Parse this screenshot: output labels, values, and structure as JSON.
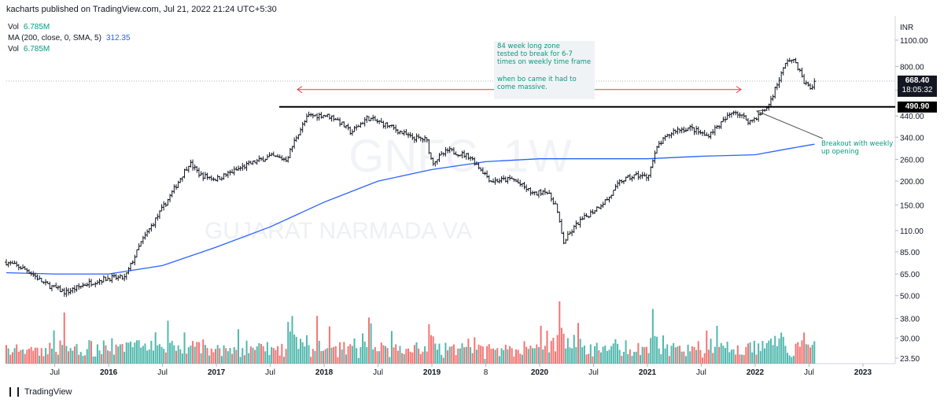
{
  "header": {
    "published": "kacharts published on TradingView.com, Jul 21, 2022 21:24 UTC+5:30"
  },
  "legend": {
    "vol1_label": "Vol",
    "vol1_value": "6.785M",
    "ma_label": "MA (200, close, 0, SMA, 5)",
    "ma_value": "312.35",
    "vol2_label": "Vol",
    "vol2_value": "6.785M"
  },
  "watermark": {
    "symbol": "GNFC, 1W",
    "name": "GUJARAT NARMADA VA"
  },
  "annotations": {
    "zone_note": [
      "84 week long zone",
      "tested to break for 6-7",
      "times on weekly time frame"
    ],
    "bo_note": [
      "when bo came it had to",
      "come massive."
    ],
    "breakout_note": [
      "Breakout with weekly",
      "up opening"
    ]
  },
  "price_axis": {
    "currency": "INR",
    "last_price": "668.40",
    "countdown": "18:05:32",
    "level_label": "490.90"
  },
  "footer": {
    "brand": "TradingView"
  },
  "colors": {
    "up": "#089981",
    "down": "#f23645",
    "ma": "#2962ff",
    "candle": "#131722",
    "vol_up": "#26a69a",
    "vol_down": "#ef5350"
  },
  "chart_data": {
    "type": "ohlc",
    "symbol": "GNFC, 1W",
    "y_scale": "log",
    "y_ticks": [
      1100,
      800,
      600,
      440,
      340,
      260,
      200,
      150,
      110,
      85,
      65,
      50,
      38,
      30,
      23.5
    ],
    "y_tick_labels": [
      "1100.00",
      "800.00",
      "",
      "440.00",
      "340.00",
      "260.00",
      "200.00",
      "150.00",
      "110.00",
      "85.00",
      "65.00",
      "50.00",
      "38.00",
      "30.00",
      "23.50"
    ],
    "x_ticks": [
      "Jul",
      "2016",
      "Jul",
      "2017",
      "Jul",
      "2018",
      "Jul",
      "2019",
      "8",
      "2020",
      "Jul",
      "2021",
      "Jul",
      "2022",
      "Jul",
      "2023"
    ],
    "x_tick_dates": [
      2015.5,
      2016.0,
      2016.5,
      2017.0,
      2017.5,
      2018.0,
      2018.5,
      2019.0,
      2019.5,
      2020.0,
      2020.5,
      2021.0,
      2021.5,
      2022.0,
      2022.5,
      2023.0
    ],
    "x_range": [
      2015.05,
      2023.3
    ],
    "price_anchors": [
      {
        "t": 2015.05,
        "v": 75
      },
      {
        "t": 2015.25,
        "v": 68
      },
      {
        "t": 2015.4,
        "v": 58
      },
      {
        "t": 2015.6,
        "v": 52
      },
      {
        "t": 2015.8,
        "v": 58
      },
      {
        "t": 2016.0,
        "v": 62
      },
      {
        "t": 2016.15,
        "v": 62
      },
      {
        "t": 2016.3,
        "v": 95
      },
      {
        "t": 2016.55,
        "v": 160
      },
      {
        "t": 2016.75,
        "v": 250
      },
      {
        "t": 2016.85,
        "v": 215
      },
      {
        "t": 2017.0,
        "v": 205
      },
      {
        "t": 2017.3,
        "v": 245
      },
      {
        "t": 2017.5,
        "v": 270
      },
      {
        "t": 2017.65,
        "v": 260
      },
      {
        "t": 2017.75,
        "v": 350
      },
      {
        "t": 2017.85,
        "v": 440
      },
      {
        "t": 2018.0,
        "v": 445
      },
      {
        "t": 2018.1,
        "v": 430
      },
      {
        "t": 2018.25,
        "v": 360
      },
      {
        "t": 2018.4,
        "v": 430
      },
      {
        "t": 2018.6,
        "v": 390
      },
      {
        "t": 2018.8,
        "v": 340
      },
      {
        "t": 2018.95,
        "v": 330
      },
      {
        "t": 2019.0,
        "v": 250
      },
      {
        "t": 2019.15,
        "v": 290
      },
      {
        "t": 2019.35,
        "v": 270
      },
      {
        "t": 2019.55,
        "v": 200
      },
      {
        "t": 2019.75,
        "v": 205
      },
      {
        "t": 2019.95,
        "v": 170
      },
      {
        "t": 2020.05,
        "v": 180
      },
      {
        "t": 2020.15,
        "v": 150
      },
      {
        "t": 2020.22,
        "v": 95
      },
      {
        "t": 2020.35,
        "v": 120
      },
      {
        "t": 2020.5,
        "v": 140
      },
      {
        "t": 2020.65,
        "v": 165
      },
      {
        "t": 2020.75,
        "v": 200
      },
      {
        "t": 2020.9,
        "v": 215
      },
      {
        "t": 2021.0,
        "v": 210
      },
      {
        "t": 2021.1,
        "v": 310
      },
      {
        "t": 2021.25,
        "v": 370
      },
      {
        "t": 2021.4,
        "v": 380
      },
      {
        "t": 2021.55,
        "v": 345
      },
      {
        "t": 2021.7,
        "v": 410
      },
      {
        "t": 2021.8,
        "v": 470
      },
      {
        "t": 2021.95,
        "v": 410
      },
      {
        "t": 2022.05,
        "v": 450
      },
      {
        "t": 2022.12,
        "v": 495
      },
      {
        "t": 2022.2,
        "v": 640
      },
      {
        "t": 2022.3,
        "v": 870
      },
      {
        "t": 2022.38,
        "v": 840
      },
      {
        "t": 2022.45,
        "v": 665
      },
      {
        "t": 2022.52,
        "v": 610
      },
      {
        "t": 2022.55,
        "v": 668.4
      }
    ],
    "ma": [
      {
        "t": 2015.05,
        "v": 66
      },
      {
        "t": 2015.5,
        "v": 65
      },
      {
        "t": 2016.0,
        "v": 65
      },
      {
        "t": 2016.5,
        "v": 72
      },
      {
        "t": 2017.0,
        "v": 90
      },
      {
        "t": 2017.5,
        "v": 115
      },
      {
        "t": 2018.0,
        "v": 155
      },
      {
        "t": 2018.5,
        "v": 200
      },
      {
        "t": 2019.0,
        "v": 230
      },
      {
        "t": 2019.5,
        "v": 253
      },
      {
        "t": 2020.0,
        "v": 262
      },
      {
        "t": 2020.5,
        "v": 262
      },
      {
        "t": 2021.0,
        "v": 262
      },
      {
        "t": 2021.5,
        "v": 270
      },
      {
        "t": 2022.0,
        "v": 275
      },
      {
        "t": 2022.3,
        "v": 295
      },
      {
        "t": 2022.55,
        "v": 312.35
      }
    ],
    "resistance_level": 490.9,
    "last_price": 668.4
  }
}
